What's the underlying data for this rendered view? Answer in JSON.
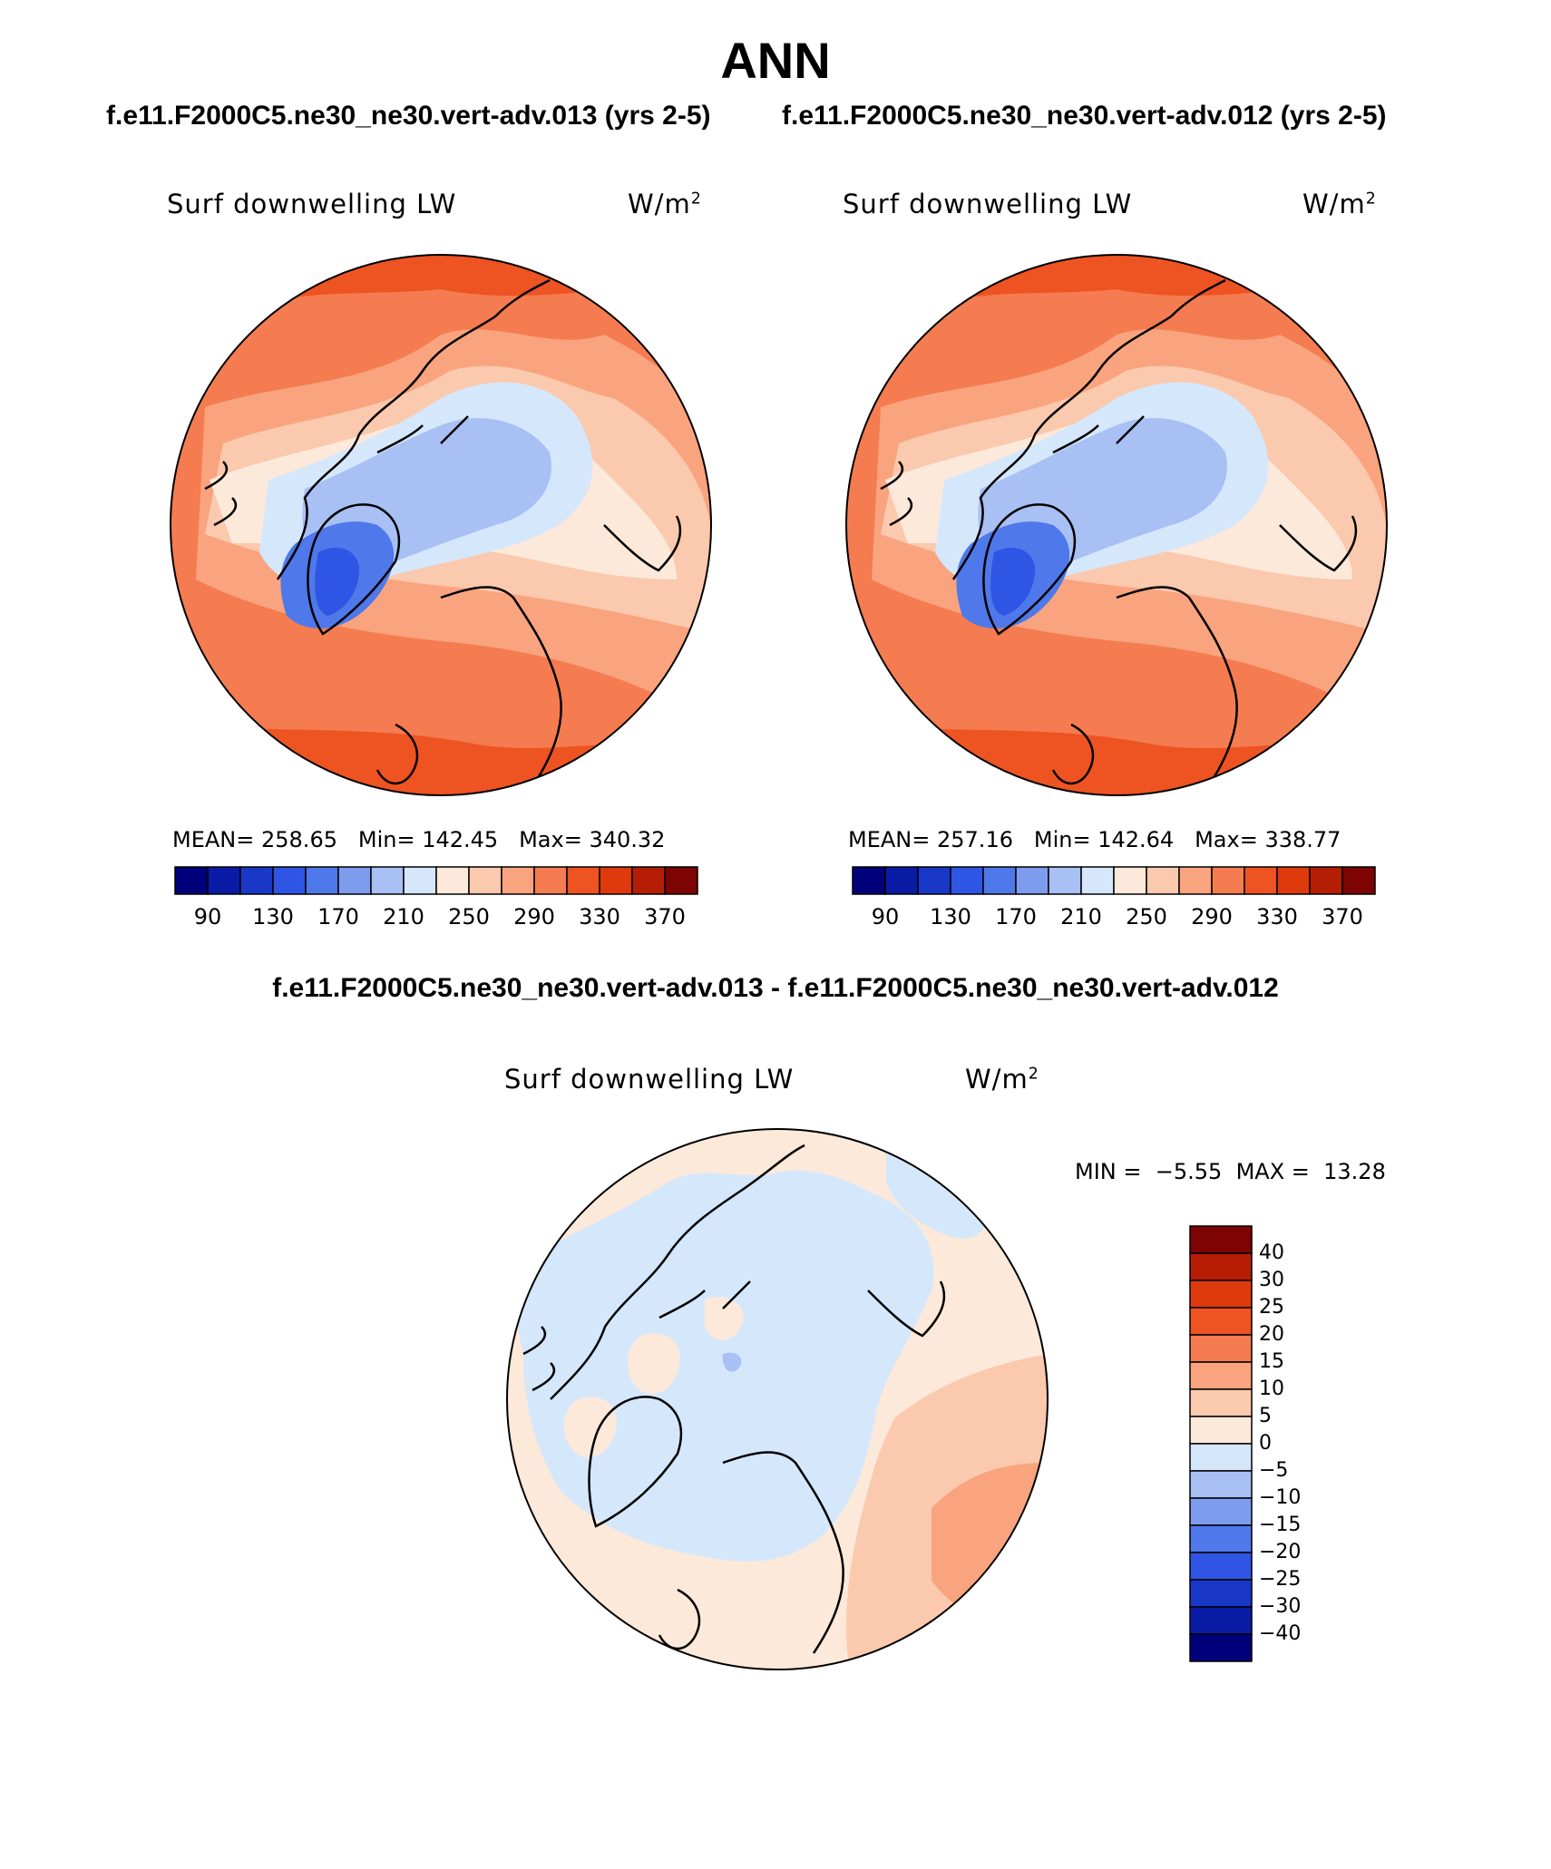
{
  "title": "ANN",
  "case_titles": {
    "left": "f.e11.F2000C5.ne30_ne30.vert-adv.013 (yrs 2-5)",
    "right": "f.e11.F2000C5.ne30_ne30.vert-adv.012 (yrs 2-5)"
  },
  "diff_title": "f.e11.F2000C5.ne30_ne30.vert-adv.013 - f.e11.F2000C5.ne30_ne30.vert-adv.012",
  "panels": [
    {
      "id": "case-013",
      "variable": "Surf downwelling LW",
      "units": "W/m",
      "units_exp": "2",
      "stats": {
        "mean_label": "MEAN=",
        "mean": "258.65",
        "min_label": "Min=",
        "min": "142.45",
        "max_label": "Max=",
        "max": "340.32"
      }
    },
    {
      "id": "case-012",
      "variable": "Surf downwelling LW",
      "units": "W/m",
      "units_exp": "2",
      "stats": {
        "mean_label": "MEAN=",
        "mean": "257.16",
        "min_label": "Min=",
        "min": "142.64",
        "max_label": "Max=",
        "max": "338.77"
      }
    },
    {
      "id": "difference",
      "variable": "Surf downwelling LW",
      "units": "W/m",
      "units_exp": "2",
      "stats": {
        "min_label": "MIN =",
        "min": "−5.55",
        "max_label": "MAX =",
        "max": "13.28"
      }
    }
  ],
  "colorbar_main": {
    "colors": [
      "#00007a",
      "#0a1ca5",
      "#1a38c8",
      "#2f55e4",
      "#4f78ea",
      "#7d9cee",
      "#a8c0f4",
      "#d5e7fb",
      "#fde9da",
      "#fbc9ad",
      "#f9a47e",
      "#f47c50",
      "#ee5322",
      "#df3a0b",
      "#b51e05",
      "#7e0303"
    ],
    "tick_labels": [
      "90",
      "130",
      "170",
      "210",
      "250",
      "290",
      "330",
      "370"
    ]
  },
  "colorbar_diff": {
    "colors": [
      "#00007a",
      "#0a1ca5",
      "#1a38c8",
      "#2f55e4",
      "#4f78ea",
      "#7d9cee",
      "#a8c0f4",
      "#d5e7fb",
      "#fde9da",
      "#fbc9ad",
      "#f9a47e",
      "#f47c50",
      "#ee5322",
      "#df3a0b",
      "#b51e05",
      "#7e0303"
    ],
    "tick_labels": [
      "40",
      "30",
      "25",
      "20",
      "15",
      "10",
      "5",
      "0",
      "−5",
      "−10",
      "−15",
      "−20",
      "−25",
      "−30",
      "−40"
    ]
  },
  "map_colors": {
    "c_180": "#2f55e4",
    "c_200": "#4f78ea",
    "c_220": "#a8c0f4",
    "c_240": "#d5e7fb",
    "c_260": "#fde9da",
    "c_280": "#fbc9ad",
    "c_300": "#f9a47e",
    "c_320": "#f47c50",
    "c_340": "#ee5322",
    "d_neg": "#d5e7fb",
    "d_pos": "#fde9da",
    "d_pos10": "#fbc9ad",
    "d_pos15": "#f9a47e",
    "d_negblue": "#a8c0f4"
  }
}
